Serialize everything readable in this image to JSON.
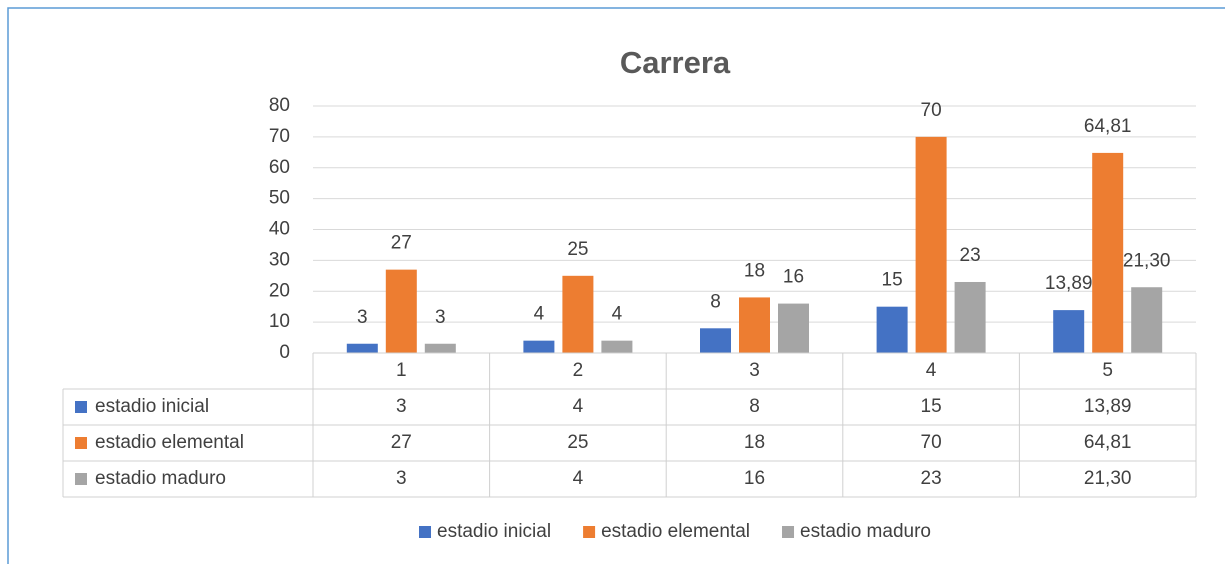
{
  "chart_data": {
    "type": "bar",
    "title": "Carrera",
    "categories": [
      "1",
      "2",
      "3",
      "4",
      "5"
    ],
    "series": [
      {
        "name": "estadio inicial",
        "color": "#4472c4",
        "values": [
          3,
          4,
          8,
          15,
          13.89
        ],
        "value_labels": [
          "3",
          "4",
          "8",
          "15",
          "13,89"
        ]
      },
      {
        "name": "estadio elemental",
        "color": "#ed7d31",
        "values": [
          27,
          25,
          18,
          70,
          64.81
        ],
        "value_labels": [
          "27",
          "25",
          "18",
          "70",
          "64,81"
        ]
      },
      {
        "name": "estadio maduro",
        "color": "#a5a5a5",
        "values": [
          3,
          4,
          16,
          23,
          21.3
        ],
        "value_labels": [
          "3",
          "4",
          "16",
          "23",
          "21,30"
        ]
      }
    ],
    "ylim": [
      0,
      80
    ],
    "yticks": [
      0,
      10,
      20,
      30,
      40,
      50,
      60,
      70,
      80
    ],
    "grid": true,
    "legend": "bottom",
    "data_table": true
  }
}
